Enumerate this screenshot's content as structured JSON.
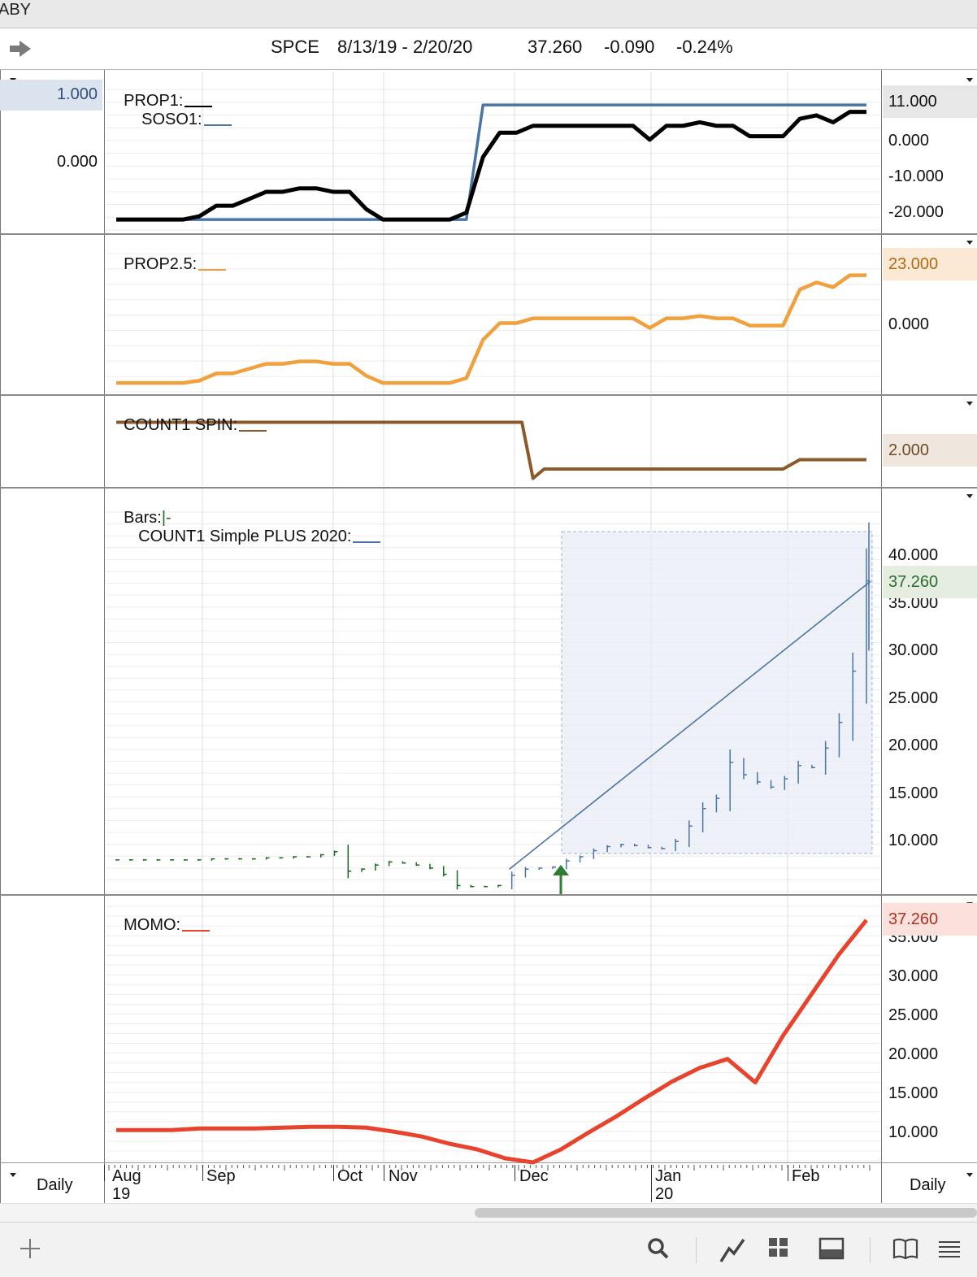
{
  "window": {
    "title_fragment": "ABY"
  },
  "header": {
    "symbol": "SPCE",
    "range": "8/13/19 - 2/20/20",
    "last": "37.260",
    "change": "-0.090",
    "change_pct": "-0.24%"
  },
  "panes": {
    "prop1": {
      "title_a": "PROP1:",
      "title_b": "SOSO1:",
      "color_a": "#000000",
      "color_b": "#4a74a6",
      "left_ticks": [
        "1.000",
        "0.000"
      ],
      "right_ticks": [
        "0.000",
        "-10.000",
        "-20.000"
      ],
      "value_badge": "11.000"
    },
    "prop25": {
      "title": "PROP2.5:",
      "color": "#f0a03c",
      "right_ticks": [
        "0.000"
      ],
      "value_badge": "23.000"
    },
    "count1spin": {
      "title": "COUNT1 SPIN:",
      "color": "#8b5a2b",
      "value_badge": "2.000"
    },
    "bars": {
      "title_a": "Bars:",
      "bars_glyph": "|-",
      "title_b": "COUNT1 Simple PLUS 2020:",
      "color_up": "#1d6b1d",
      "color_line": "#4a74a6",
      "right_ticks": [
        "40.000",
        "35.000",
        "30.000",
        "25.000",
        "20.000",
        "15.000",
        "10.000"
      ],
      "value_badge": "37.260"
    },
    "momo": {
      "title": "MOMO:",
      "color": "#e8432c",
      "right_ticks": [
        "35.000",
        "30.000",
        "25.000",
        "20.000",
        "15.000",
        "10.000"
      ],
      "value_badge": "37.260"
    }
  },
  "xaxis": {
    "months": [
      "Aug",
      "Sep",
      "Oct",
      "Nov",
      "Dec",
      "Jan",
      "Feb"
    ],
    "years": {
      "Aug": "19",
      "Jan": "20"
    }
  },
  "footer": {
    "left_period": "Daily",
    "right_period": "Daily"
  },
  "toolbar": {
    "icons": [
      "add-icon",
      "search-icon",
      "chart-line-icon",
      "grid-icon",
      "panel-icon",
      "book-icon",
      "menu-icon"
    ]
  },
  "chart_data": [
    {
      "type": "line",
      "title": "PROP1 / SOSO1",
      "x": [
        0,
        3,
        6,
        9,
        12,
        15,
        18,
        21,
        24,
        27,
        30,
        33,
        36,
        39,
        42,
        45,
        48,
        51,
        54,
        57,
        60,
        63,
        66,
        69,
        72,
        75,
        78,
        81,
        84,
        87,
        90,
        93,
        96,
        99,
        102,
        105,
        108,
        111,
        114,
        117,
        120,
        123,
        126,
        129,
        132,
        135
      ],
      "series": [
        {
          "name": "PROP1",
          "values": [
            -22,
            -22,
            -22,
            -22,
            -22,
            -21,
            -18,
            -18,
            -16,
            -14,
            -14,
            -13,
            -13,
            -14,
            -14,
            -19,
            -22,
            -22,
            -22,
            -22,
            -22,
            -20,
            -4,
            3,
            3,
            5,
            5,
            5,
            5,
            5,
            5,
            5,
            1,
            5,
            5,
            6,
            5,
            5,
            2,
            2,
            2,
            7,
            8,
            6,
            9,
            9
          ]
        },
        {
          "name": "SOSO1",
          "values": [
            -22,
            -22,
            -22,
            -22,
            -22,
            -22,
            -22,
            -22,
            -22,
            -22,
            -22,
            -22,
            -22,
            -22,
            -22,
            -22,
            -22,
            -22,
            -22,
            -22,
            -22,
            -22,
            11,
            11,
            11,
            11,
            11,
            11,
            11,
            11,
            11,
            11,
            11,
            11,
            11,
            11,
            11,
            11,
            11,
            11,
            11,
            11,
            11,
            11,
            11,
            11
          ]
        }
      ],
      "ylim": [
        -25,
        15
      ]
    },
    {
      "type": "line",
      "title": "PROP2.5",
      "series": [
        {
          "name": "PROP2.5",
          "values": [
            -22,
            -22,
            -22,
            -22,
            -22,
            -21,
            -18,
            -18,
            -16,
            -14,
            -14,
            -13,
            -13,
            -14,
            -14,
            -19,
            -22,
            -22,
            -22,
            -22,
            -22,
            -20,
            -4,
            3,
            3,
            5,
            5,
            5,
            5,
            5,
            5,
            5,
            1,
            5,
            5,
            6,
            5,
            5,
            2,
            2,
            2,
            17,
            20,
            18,
            23,
            23
          ]
        }
      ],
      "ylim": [
        -25,
        30
      ]
    },
    {
      "type": "line",
      "title": "COUNT1 SPIN",
      "x": [
        0,
        73,
        75,
        77,
        120,
        123,
        135
      ],
      "series": [
        {
          "name": "COUNT1 SPIN",
          "values": [
            6,
            6,
            0,
            1,
            1,
            2,
            2
          ]
        }
      ],
      "ylim": [
        -1,
        7
      ]
    },
    {
      "type": "bar",
      "title": "COUNT1 Simple PLUS 2020",
      "subtype": "ohlc",
      "closes": [
        10.1,
        10.1,
        10.1,
        10.1,
        10.1,
        10.1,
        10.1,
        10.2,
        10.2,
        10.2,
        10.2,
        10.3,
        10.3,
        10.4,
        10.4,
        10.6,
        10.9,
        9.0,
        9.2,
        9.6,
        9.9,
        9.8,
        9.6,
        9.3,
        8.7,
        7.6,
        7.5,
        7.5,
        7.6,
        8.6,
        9.2,
        9.3,
        9.4,
        10.0,
        10.4,
        11.0,
        11.4,
        11.6,
        11.5,
        11.3,
        11.2,
        11.9,
        13.4,
        15.1,
        16.1,
        19.6,
        18.4,
        17.7,
        17.2,
        18.0,
        19.3,
        19.1,
        21.0,
        23.5,
        28.5,
        37.3
      ],
      "line_start": 9.2,
      "line_end": 37.26,
      "ylim": [
        7,
        44
      ]
    },
    {
      "type": "line",
      "title": "MOMO",
      "x": [
        0,
        6,
        10,
        15,
        20,
        25,
        30,
        35,
        40,
        45,
        50,
        55,
        60,
        65,
        70,
        75,
        80,
        85,
        90,
        95,
        100,
        105,
        110,
        115,
        120,
        125,
        130,
        135
      ],
      "series": [
        {
          "name": "MOMO",
          "values": [
            11.3,
            11.3,
            11.3,
            11.5,
            11.5,
            11.5,
            11.6,
            11.7,
            11.7,
            11.6,
            11.1,
            10.5,
            9.6,
            8.9,
            7.8,
            7.3,
            8.9,
            11.0,
            13.0,
            15.2,
            17.3,
            19.0,
            20.1,
            17.2,
            23.0,
            28.0,
            33.0,
            37.3
          ]
        }
      ],
      "ylim": [
        7.5,
        39
      ]
    }
  ]
}
